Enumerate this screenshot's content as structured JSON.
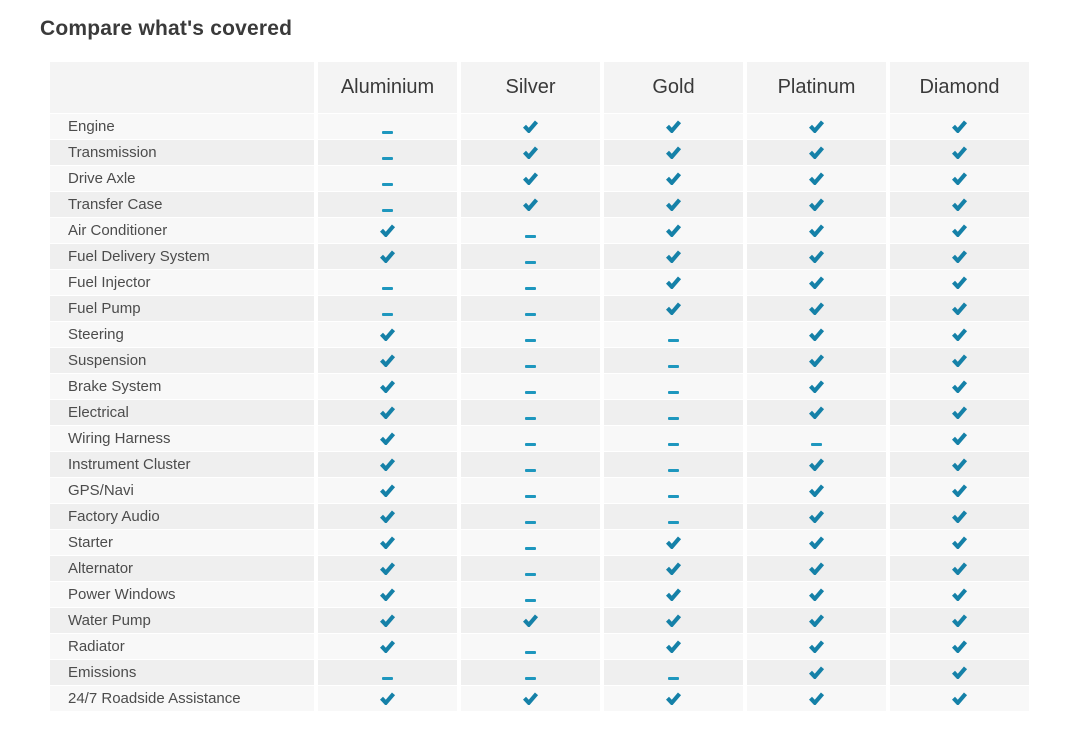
{
  "page": {
    "title": "Compare what's covered"
  },
  "table": {
    "columns": [
      "Aluminium",
      "Silver",
      "Gold",
      "Platinum",
      "Diamond"
    ],
    "colors": {
      "check": "#1581a8",
      "dash": "#1e97be"
    },
    "marks": {
      "covered": "check-icon",
      "not_covered": "dash-icon"
    },
    "rows": [
      {
        "label": "Engine",
        "covered": [
          false,
          true,
          true,
          true,
          true
        ]
      },
      {
        "label": "Transmission",
        "covered": [
          false,
          true,
          true,
          true,
          true
        ]
      },
      {
        "label": "Drive Axle",
        "covered": [
          false,
          true,
          true,
          true,
          true
        ]
      },
      {
        "label": "Transfer Case",
        "covered": [
          false,
          true,
          true,
          true,
          true
        ]
      },
      {
        "label": "Air Conditioner",
        "covered": [
          true,
          false,
          true,
          true,
          true
        ]
      },
      {
        "label": "Fuel Delivery System",
        "covered": [
          true,
          false,
          true,
          true,
          true
        ]
      },
      {
        "label": "Fuel Injector",
        "covered": [
          false,
          false,
          true,
          true,
          true
        ]
      },
      {
        "label": "Fuel Pump",
        "covered": [
          false,
          false,
          true,
          true,
          true
        ]
      },
      {
        "label": "Steering",
        "covered": [
          true,
          false,
          false,
          true,
          true
        ]
      },
      {
        "label": "Suspension",
        "covered": [
          true,
          false,
          false,
          true,
          true
        ]
      },
      {
        "label": "Brake System",
        "covered": [
          true,
          false,
          false,
          true,
          true
        ]
      },
      {
        "label": "Electrical",
        "covered": [
          true,
          false,
          false,
          true,
          true
        ]
      },
      {
        "label": "Wiring Harness",
        "covered": [
          true,
          false,
          false,
          false,
          true
        ]
      },
      {
        "label": "Instrument Cluster",
        "covered": [
          true,
          false,
          false,
          true,
          true
        ]
      },
      {
        "label": "GPS/Navi",
        "covered": [
          true,
          false,
          false,
          true,
          true
        ]
      },
      {
        "label": "Factory Audio",
        "covered": [
          true,
          false,
          false,
          true,
          true
        ]
      },
      {
        "label": "Starter",
        "covered": [
          true,
          false,
          true,
          true,
          true
        ]
      },
      {
        "label": "Alternator",
        "covered": [
          true,
          false,
          true,
          true,
          true
        ]
      },
      {
        "label": "Power Windows",
        "covered": [
          true,
          false,
          true,
          true,
          true
        ]
      },
      {
        "label": "Water Pump",
        "covered": [
          true,
          true,
          true,
          true,
          true
        ]
      },
      {
        "label": "Radiator",
        "covered": [
          true,
          false,
          true,
          true,
          true
        ]
      },
      {
        "label": "Emissions",
        "covered": [
          false,
          false,
          false,
          true,
          true
        ]
      },
      {
        "label": "24/7 Roadside Assistance",
        "covered": [
          true,
          true,
          true,
          true,
          true
        ]
      }
    ]
  }
}
